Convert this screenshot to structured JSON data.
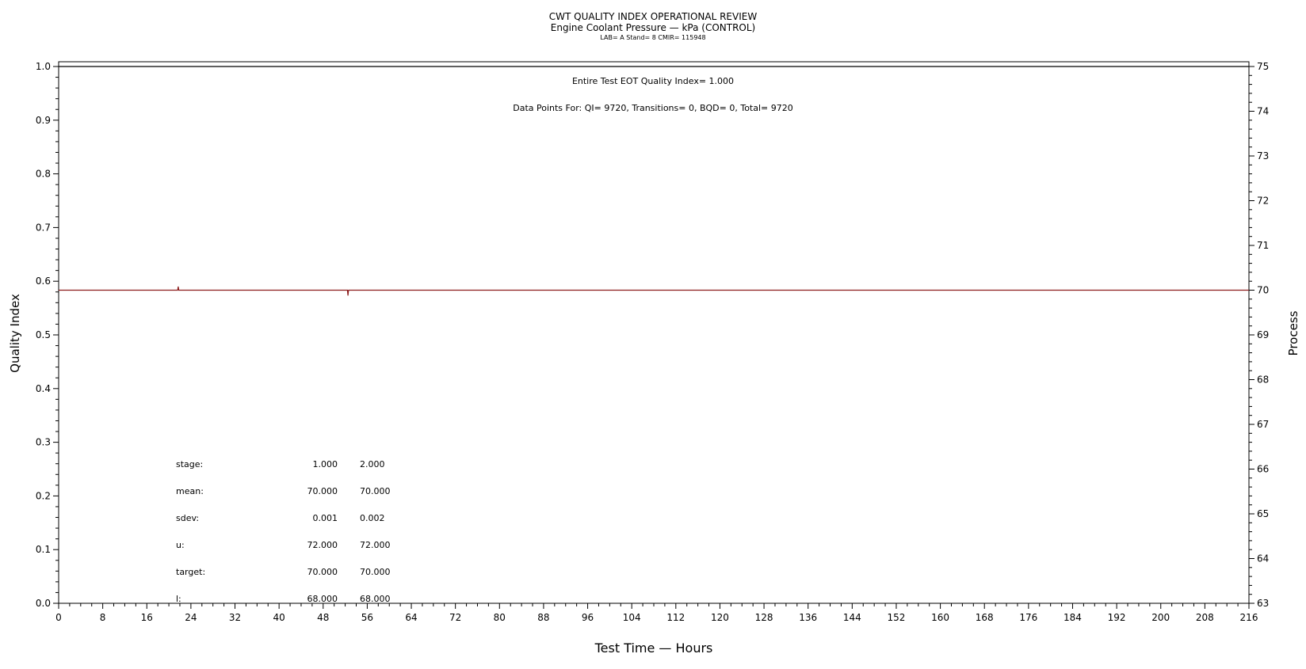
{
  "header": {
    "title": "CWT QUALITY INDEX OPERATIONAL REVIEW",
    "subtitle": "Engine Coolant Pressure — kPa (CONTROL)",
    "meta": "LAB= A Stand= 8 CMIR= 115948"
  },
  "annotations": {
    "quality_index": "Entire Test EOT Quality Index=   1.000",
    "data_points": "Data Points For: QI=  9720, Transitions=     0, BQD=     0, Total=  9720"
  },
  "stats_table": {
    "rows": [
      {
        "label": "stage:",
        "v1": "1.000",
        "v2": "2.000"
      },
      {
        "label": "mean:",
        "v1": "70.000",
        "v2": "70.000"
      },
      {
        "label": "sdev:",
        "v1": "0.001",
        "v2": "0.002"
      },
      {
        "label": "u:",
        "v1": "72.000",
        "v2": "72.000"
      },
      {
        "label": "target:",
        "v1": "70.000",
        "v2": "70.000"
      },
      {
        "label": "l:",
        "v1": "68.000",
        "v2": "68.000"
      }
    ]
  },
  "chart_data": {
    "type": "line",
    "xlabel": "Test Time — Hours",
    "ylabel": "Quality Index",
    "y2label": "Process",
    "xlim": [
      0,
      216
    ],
    "ylim": [
      0,
      1.0
    ],
    "y2lim": [
      63,
      75
    ],
    "x_ticks": [
      0,
      8,
      16,
      24,
      32,
      40,
      48,
      56,
      64,
      72,
      80,
      88,
      96,
      104,
      112,
      120,
      128,
      136,
      144,
      152,
      160,
      168,
      176,
      184,
      192,
      200,
      208,
      216
    ],
    "y_ticks": [
      "0.0",
      "0.1",
      "0.2",
      "0.3",
      "0.4",
      "0.5",
      "0.6",
      "0.7",
      "0.8",
      "0.9",
      "1.0"
    ],
    "y2_ticks": [
      63,
      64,
      65,
      66,
      67,
      68,
      69,
      70,
      71,
      72,
      73,
      74,
      75
    ],
    "grid": false,
    "series": [
      {
        "axis": "left",
        "color": "#000000",
        "x": [
          0,
          216
        ],
        "values": [
          1.0,
          1.0
        ]
      },
      {
        "axis": "right",
        "color": "#8b1a1a",
        "x": [
          0,
          21.6,
          21.7,
          21.8,
          52.4,
          52.5,
          52.6,
          216
        ],
        "values": [
          70.0,
          70.0,
          70.08,
          70.0,
          70.0,
          69.88,
          70.0,
          70.0
        ]
      }
    ]
  }
}
